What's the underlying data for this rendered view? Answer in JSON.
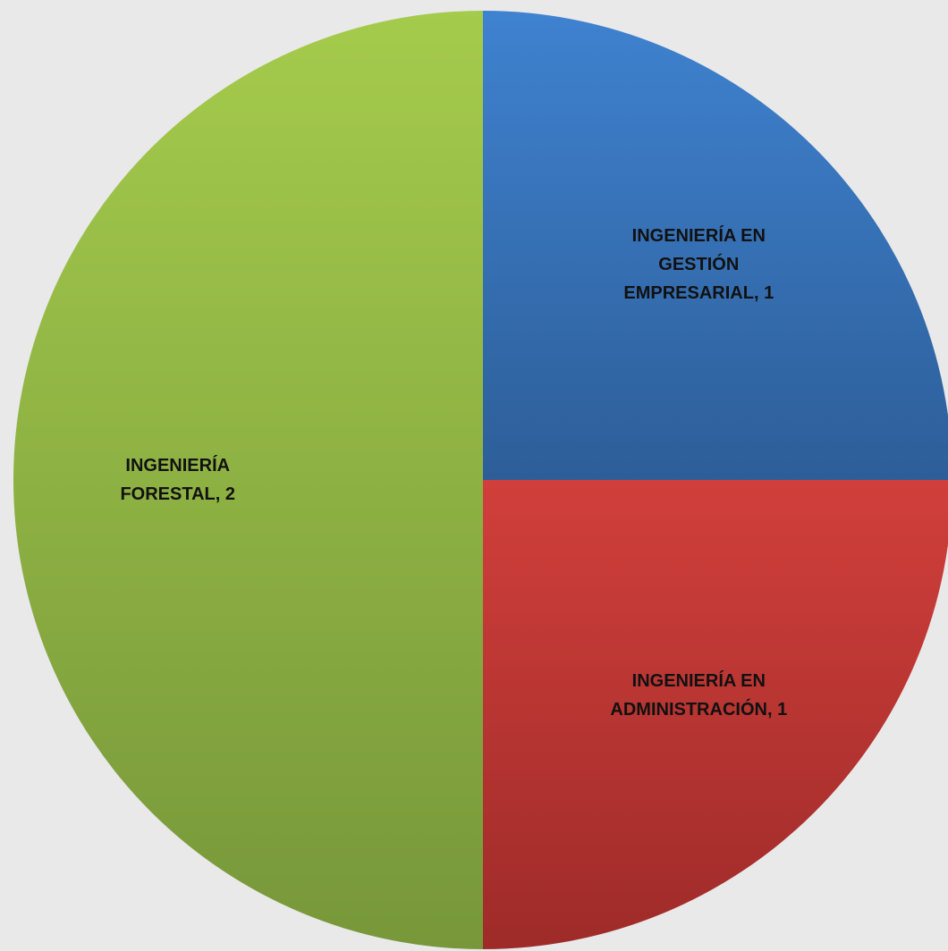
{
  "chart_data": {
    "type": "pie",
    "categories": [
      "INGENIERÍA EN GESTIÓN EMPRESARIAL",
      "INGENIERÍA EN ADMINISTRACIÓN",
      "INGENIERÍA FORESTAL"
    ],
    "values": [
      1,
      1,
      2
    ],
    "colors": [
      [
        "#3f82d0",
        "#2d5e98"
      ],
      [
        "#d13f3b",
        "#9e2b29"
      ],
      [
        "#a5cb4c",
        "#77973a"
      ]
    ]
  }
}
